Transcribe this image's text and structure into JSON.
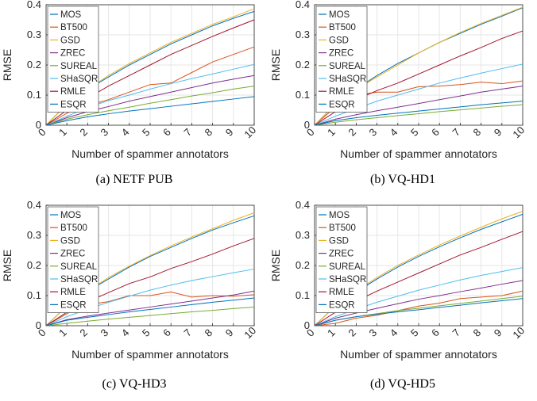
{
  "chart_data": [
    {
      "type": "line",
      "caption": "(a) NETF PUB",
      "xlabel": "Number of spammer annotators",
      "ylabel": "RMSE",
      "xlim": [
        0,
        10
      ],
      "ylim": [
        0,
        0.4
      ],
      "xticks": [
        0,
        1,
        2,
        3,
        4,
        5,
        6,
        7,
        8,
        9,
        10
      ],
      "yticks": [
        0,
        0.1,
        0.2,
        0.3,
        0.4
      ],
      "grid": true,
      "legend_position": "top-left",
      "x": [
        0,
        1,
        2,
        3,
        4,
        5,
        6,
        7,
        8,
        9,
        10
      ],
      "series": [
        {
          "name": "MOS",
          "color": "#0072BD",
          "values": [
            0,
            0.07,
            0.12,
            0.16,
            0.2,
            0.235,
            0.27,
            0.3,
            0.33,
            0.355,
            0.378
          ]
        },
        {
          "name": "BT500",
          "color": "#D95319",
          "values": [
            0,
            0.04,
            0.065,
            0.085,
            0.11,
            0.135,
            0.14,
            0.175,
            0.21,
            0.235,
            0.26
          ]
        },
        {
          "name": "GSD",
          "color": "#EDB120",
          "values": [
            0,
            0.07,
            0.12,
            0.165,
            0.205,
            0.24,
            0.275,
            0.305,
            0.335,
            0.36,
            0.387
          ]
        },
        {
          "name": "ZREC",
          "color": "#7E2F8E",
          "values": [
            0,
            0.025,
            0.045,
            0.062,
            0.08,
            0.095,
            0.11,
            0.125,
            0.14,
            0.153,
            0.165
          ]
        },
        {
          "name": "SUREAL",
          "color": "#77AC30",
          "values": [
            0,
            0.02,
            0.035,
            0.048,
            0.06,
            0.073,
            0.085,
            0.097,
            0.108,
            0.12,
            0.13
          ]
        },
        {
          "name": "SHaSQR",
          "color": "#4DBEEE",
          "values": [
            0,
            0.03,
            0.058,
            0.082,
            0.1,
            0.12,
            0.138,
            0.155,
            0.17,
            0.186,
            0.202
          ]
        },
        {
          "name": "RMLE",
          "color": "#A2142F",
          "values": [
            0,
            0.05,
            0.09,
            0.13,
            0.165,
            0.2,
            0.235,
            0.265,
            0.295,
            0.323,
            0.35
          ]
        },
        {
          "name": "ESQR",
          "color": "#0072BD",
          "values": [
            0,
            0.015,
            0.028,
            0.038,
            0.047,
            0.055,
            0.063,
            0.071,
            0.079,
            0.087,
            0.095
          ]
        }
      ]
    },
    {
      "type": "line",
      "caption": "(b) VQ-HD1",
      "xlabel": "Number of spammer annotators",
      "ylabel": "RMSE",
      "xlim": [
        0,
        10
      ],
      "ylim": [
        0,
        0.4
      ],
      "xticks": [
        0,
        1,
        2,
        3,
        4,
        5,
        6,
        7,
        8,
        9,
        10
      ],
      "yticks": [
        0,
        0.1,
        0.2,
        0.3,
        0.4
      ],
      "grid": true,
      "legend_position": "top-left",
      "x": [
        0,
        1,
        2,
        3,
        4,
        5,
        6,
        7,
        8,
        9,
        10
      ],
      "series": [
        {
          "name": "MOS",
          "color": "#0072BD",
          "values": [
            0,
            0.07,
            0.12,
            0.165,
            0.205,
            0.24,
            0.275,
            0.305,
            0.335,
            0.362,
            0.39
          ]
        },
        {
          "name": "BT500",
          "color": "#D95319",
          "values": [
            0,
            0.06,
            0.1,
            0.11,
            0.11,
            0.128,
            0.13,
            0.135,
            0.143,
            0.138,
            0.147
          ]
        },
        {
          "name": "GSD",
          "color": "#EDB120",
          "values": [
            0,
            0.07,
            0.12,
            0.16,
            0.2,
            0.24,
            0.275,
            0.308,
            0.338,
            0.365,
            0.392
          ]
        },
        {
          "name": "ZREC",
          "color": "#7E2F8E",
          "values": [
            0,
            0.02,
            0.035,
            0.048,
            0.06,
            0.072,
            0.085,
            0.097,
            0.11,
            0.12,
            0.13
          ]
        },
        {
          "name": "SUREAL",
          "color": "#77AC30",
          "values": [
            0,
            0.01,
            0.018,
            0.025,
            0.032,
            0.038,
            0.045,
            0.051,
            0.057,
            0.063,
            0.068
          ]
        },
        {
          "name": "SHaSQR",
          "color": "#4DBEEE",
          "values": [
            0,
            0.03,
            0.055,
            0.08,
            0.1,
            0.12,
            0.14,
            0.157,
            0.173,
            0.188,
            0.203
          ]
        },
        {
          "name": "RMLE",
          "color": "#A2142F",
          "values": [
            0,
            0.045,
            0.085,
            0.115,
            0.14,
            0.17,
            0.2,
            0.23,
            0.258,
            0.288,
            0.313
          ]
        },
        {
          "name": "ESQR",
          "color": "#0072BD",
          "values": [
            0,
            0.015,
            0.025,
            0.033,
            0.04,
            0.047,
            0.054,
            0.061,
            0.068,
            0.074,
            0.08
          ]
        }
      ]
    },
    {
      "type": "line",
      "caption": "(c) VQ-HD3",
      "xlabel": "Number of spammer annotators",
      "ylabel": "RMSE",
      "xlim": [
        0,
        10
      ],
      "ylim": [
        0,
        0.4
      ],
      "xticks": [
        0,
        1,
        2,
        3,
        4,
        5,
        6,
        7,
        8,
        9,
        10
      ],
      "yticks": [
        0,
        0.1,
        0.2,
        0.3,
        0.4
      ],
      "grid": true,
      "legend_position": "top-left",
      "x": [
        0,
        1,
        2,
        3,
        4,
        5,
        6,
        7,
        8,
        9,
        10
      ],
      "series": [
        {
          "name": "MOS",
          "color": "#0072BD",
          "values": [
            0,
            0.065,
            0.115,
            0.155,
            0.195,
            0.23,
            0.26,
            0.29,
            0.318,
            0.342,
            0.365
          ]
        },
        {
          "name": "BT500",
          "color": "#D95319",
          "values": [
            0,
            0.04,
            0.07,
            0.08,
            0.1,
            0.1,
            0.112,
            0.095,
            0.1,
            0.098,
            0.103
          ]
        },
        {
          "name": "GSD",
          "color": "#EDB120",
          "values": [
            0,
            0.065,
            0.115,
            0.16,
            0.198,
            0.233,
            0.265,
            0.295,
            0.322,
            0.35,
            0.375
          ]
        },
        {
          "name": "ZREC",
          "color": "#7E2F8E",
          "values": [
            0,
            0.02,
            0.032,
            0.042,
            0.052,
            0.062,
            0.072,
            0.082,
            0.092,
            0.102,
            0.115
          ]
        },
        {
          "name": "SUREAL",
          "color": "#77AC30",
          "values": [
            0,
            0.008,
            0.015,
            0.022,
            0.028,
            0.034,
            0.04,
            0.046,
            0.051,
            0.057,
            0.062
          ]
        },
        {
          "name": "SHaSQR",
          "color": "#4DBEEE",
          "values": [
            0,
            0.03,
            0.055,
            0.078,
            0.098,
            0.118,
            0.135,
            0.15,
            0.163,
            0.176,
            0.188
          ]
        },
        {
          "name": "RMLE",
          "color": "#A2142F",
          "values": [
            0,
            0.045,
            0.08,
            0.11,
            0.14,
            0.162,
            0.19,
            0.213,
            0.238,
            0.265,
            0.29
          ]
        },
        {
          "name": "ESQR",
          "color": "#0072BD",
          "values": [
            0,
            0.018,
            0.028,
            0.037,
            0.046,
            0.054,
            0.062,
            0.07,
            0.078,
            0.085,
            0.092
          ]
        }
      ]
    },
    {
      "type": "line",
      "caption": "(d) VQ-HD5",
      "xlabel": "Number of spammer annotators",
      "ylabel": "RMSE",
      "xlim": [
        0,
        10
      ],
      "ylim": [
        0,
        0.4
      ],
      "xticks": [
        0,
        1,
        2,
        3,
        4,
        5,
        6,
        7,
        8,
        9,
        10
      ],
      "yticks": [
        0,
        0.1,
        0.2,
        0.3,
        0.4
      ],
      "grid": true,
      "legend_position": "top-left",
      "x": [
        0,
        1,
        2,
        3,
        4,
        5,
        6,
        7,
        8,
        9,
        10
      ],
      "series": [
        {
          "name": "MOS",
          "color": "#0072BD",
          "values": [
            0,
            0.065,
            0.112,
            0.155,
            0.195,
            0.23,
            0.262,
            0.292,
            0.32,
            0.345,
            0.37
          ]
        },
        {
          "name": "BT500",
          "color": "#D95319",
          "values": [
            0,
            0.008,
            0.025,
            0.035,
            0.05,
            0.065,
            0.075,
            0.09,
            0.095,
            0.1,
            0.115
          ]
        },
        {
          "name": "GSD",
          "color": "#EDB120",
          "values": [
            0,
            0.065,
            0.115,
            0.16,
            0.2,
            0.235,
            0.268,
            0.298,
            0.327,
            0.355,
            0.38
          ]
        },
        {
          "name": "ZREC",
          "color": "#7E2F8E",
          "values": [
            0,
            0.025,
            0.042,
            0.058,
            0.073,
            0.088,
            0.1,
            0.113,
            0.125,
            0.138,
            0.15
          ]
        },
        {
          "name": "SUREAL",
          "color": "#77AC30",
          "values": [
            0,
            0.018,
            0.03,
            0.04,
            0.05,
            0.058,
            0.066,
            0.074,
            0.082,
            0.09,
            0.098
          ]
        },
        {
          "name": "SHaSQR",
          "color": "#4DBEEE",
          "values": [
            0,
            0.03,
            0.055,
            0.078,
            0.098,
            0.118,
            0.135,
            0.152,
            0.167,
            0.18,
            0.193
          ]
        },
        {
          "name": "RMLE",
          "color": "#A2142F",
          "values": [
            0,
            0.045,
            0.082,
            0.115,
            0.145,
            0.175,
            0.205,
            0.235,
            0.26,
            0.287,
            0.313
          ]
        },
        {
          "name": "ESQR",
          "color": "#0072BD",
          "values": [
            0,
            0.018,
            0.03,
            0.038,
            0.046,
            0.053,
            0.061,
            0.068,
            0.076,
            0.083,
            0.09
          ]
        }
      ]
    }
  ]
}
